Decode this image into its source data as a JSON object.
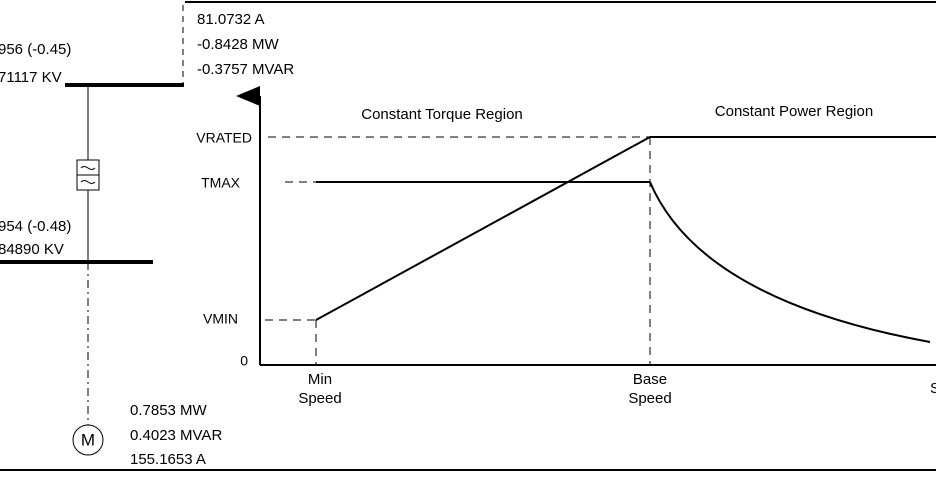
{
  "feeder": {
    "flow_top": [
      "81.0732 A",
      "-0.8428 MW",
      "-0.3757 MVAR"
    ],
    "bus1": [
      "956 (-0.45)",
      "71117 KV"
    ],
    "bus2": [
      "954 (-0.48)",
      "84890 KV"
    ],
    "motor_symbol": "M",
    "motor_flow": [
      "0.7853 MW",
      "0.4023 MVAR",
      "155.1653 A"
    ]
  },
  "graph": {
    "regions": [
      "Constant Torque Region",
      "Constant Power Region"
    ],
    "y_labels": [
      "VRATED",
      "TMAX",
      "VMIN",
      "0"
    ],
    "x_labels": [
      [
        "Min",
        "Speed"
      ],
      [
        "Base",
        "Speed"
      ],
      [
        "S"
      ]
    ]
  }
}
